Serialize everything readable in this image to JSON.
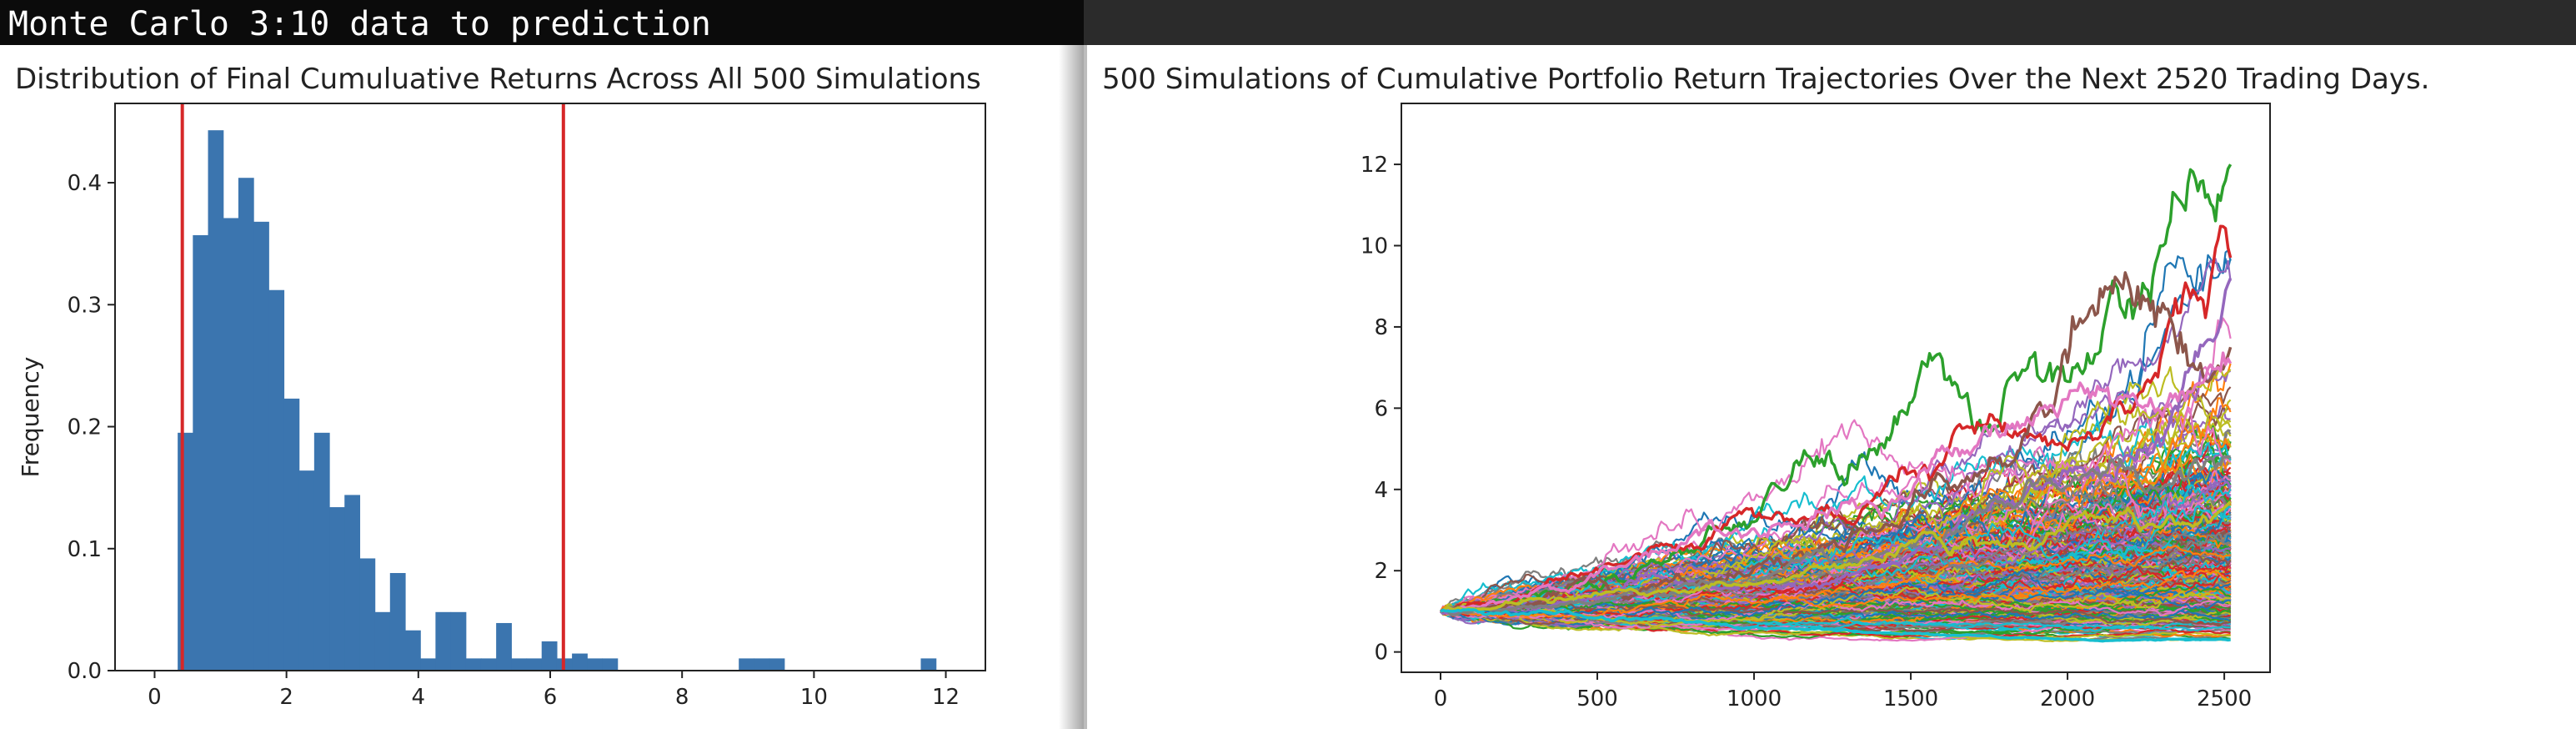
{
  "window": {
    "title": "Monte Carlo 3:10 data to prediction"
  },
  "chart_data": [
    {
      "type": "bar",
      "title": "Distribution of Final Cumuluative Returns Across All 500 Simulations",
      "xlabel": "",
      "ylabel": "Frequency",
      "xlim": [
        -0.6,
        12.6
      ],
      "ylim": [
        0,
        0.465
      ],
      "xticks": [
        0,
        2,
        4,
        6,
        8,
        10,
        12
      ],
      "yticks": [
        0.0,
        0.1,
        0.2,
        0.3,
        0.4
      ],
      "bin_width": 0.23,
      "bin_starts": [
        0.35,
        0.58,
        0.81,
        1.04,
        1.27,
        1.5,
        1.73,
        1.96,
        2.19,
        2.42,
        2.65,
        2.88,
        3.11,
        3.34,
        3.57,
        3.8,
        4.03,
        4.26,
        4.49,
        4.72,
        4.95,
        5.18,
        5.41,
        5.64,
        5.87,
        6.1,
        6.33,
        6.56,
        6.79,
        7.02,
        7.25,
        7.48,
        7.71,
        7.94,
        8.17,
        8.4,
        8.63,
        8.86,
        9.09,
        9.32,
        9.55,
        9.78,
        10.01,
        10.24,
        10.47,
        10.7,
        10.93,
        11.16,
        11.39,
        11.62
      ],
      "values": [
        0.195,
        0.357,
        0.443,
        0.371,
        0.404,
        0.368,
        0.312,
        0.223,
        0.164,
        0.195,
        0.134,
        0.144,
        0.092,
        0.048,
        0.08,
        0.033,
        0.01,
        0.048,
        0.048,
        0.01,
        0.01,
        0.039,
        0.01,
        0.01,
        0.024,
        0.01,
        0.014,
        0.01,
        0.01,
        0,
        0,
        0,
        0,
        0,
        0,
        0,
        0,
        0.01,
        0.01,
        0.01,
        0,
        0,
        0,
        0,
        0,
        0,
        0,
        0,
        0,
        0.01
      ],
      "bar_color": "#3b75af",
      "vlines": [
        0.42,
        6.2
      ],
      "vline_color": "#d62728"
    },
    {
      "type": "line",
      "title": "500 Simulations of Cumulative Portfolio Return Trajectories Over the Next 2520 Trading Days.",
      "xlabel": "",
      "ylabel": "",
      "xlim": [
        -125,
        2646
      ],
      "ylim": [
        -0.5,
        13.5
      ],
      "xticks": [
        0,
        500,
        1000,
        1500,
        2000,
        2500
      ],
      "yticks": [
        0,
        2,
        4,
        6,
        8,
        10,
        12
      ],
      "n_simulations": 500,
      "n_days": 2520,
      "start_value": 1.0,
      "notable_final_values": [
        12.0,
        9.7,
        9.2,
        7.5,
        7.1,
        4.8,
        3.7,
        0.3
      ],
      "colors": [
        "#1f77b4",
        "#ff7f0e",
        "#2ca02c",
        "#d62728",
        "#9467bd",
        "#8c564b",
        "#e377c2",
        "#7f7f7f",
        "#bcbd22",
        "#17becf"
      ]
    }
  ]
}
